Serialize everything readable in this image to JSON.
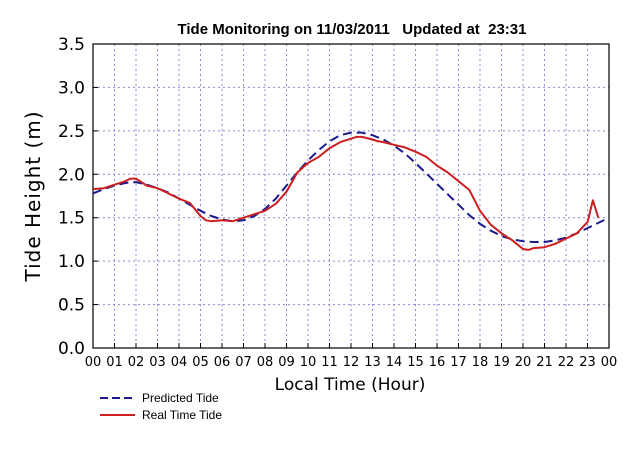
{
  "chart_data": {
    "type": "line",
    "title": "Tide Monitoring on 11/03/2011   Updated at  23:31",
    "xlabel": "Local Time (Hour)",
    "ylabel": "Tide Height (m)",
    "xlim": [
      0,
      24
    ],
    "ylim": [
      0,
      3.5
    ],
    "x_ticks": [
      "00",
      "01",
      "02",
      "03",
      "04",
      "05",
      "06",
      "07",
      "08",
      "09",
      "10",
      "11",
      "12",
      "13",
      "14",
      "15",
      "16",
      "17",
      "18",
      "19",
      "20",
      "21",
      "22",
      "23",
      "00"
    ],
    "y_ticks": [
      "0.0",
      "0.5",
      "1.0",
      "1.5",
      "2.0",
      "2.5",
      "3.0",
      "3.5"
    ],
    "grid": true,
    "legend_position": "bottom-left",
    "series": [
      {
        "name": "Predicted Tide",
        "style": "dashed",
        "color": "#1a1a8c",
        "x": [
          0,
          0.5,
          1,
          1.5,
          2,
          2.5,
          3,
          3.5,
          4,
          4.5,
          5,
          5.5,
          6,
          6.5,
          7,
          7.5,
          8,
          8.5,
          9,
          9.5,
          10,
          10.5,
          11,
          11.5,
          12,
          12.5,
          13,
          13.5,
          14,
          14.5,
          15,
          15.5,
          16,
          16.5,
          17,
          17.5,
          18,
          18.5,
          19,
          19.5,
          20,
          20.5,
          21,
          21.5,
          22,
          22.5,
          23,
          23.5,
          24
        ],
        "y": [
          1.78,
          1.83,
          1.87,
          1.9,
          1.91,
          1.88,
          1.84,
          1.79,
          1.72,
          1.65,
          1.58,
          1.52,
          1.48,
          1.46,
          1.47,
          1.52,
          1.6,
          1.72,
          1.87,
          2.02,
          2.16,
          2.28,
          2.38,
          2.45,
          2.48,
          2.48,
          2.45,
          2.4,
          2.33,
          2.24,
          2.13,
          2.01,
          1.89,
          1.77,
          1.65,
          1.53,
          1.43,
          1.35,
          1.29,
          1.25,
          1.23,
          1.22,
          1.22,
          1.24,
          1.27,
          1.32,
          1.38,
          1.44,
          1.5
        ]
      },
      {
        "name": "Real Time Tide",
        "style": "solid",
        "color": "#cc1f1f",
        "x": [
          0,
          0.5,
          1,
          1.5,
          1.75,
          2,
          2.5,
          3,
          3.5,
          4,
          4.5,
          5,
          5.25,
          5.5,
          6,
          6.5,
          7,
          7.5,
          8,
          8.5,
          9,
          9.5,
          10,
          10.5,
          11,
          11.5,
          12,
          12.25,
          12.5,
          13,
          13.25,
          13.5,
          14,
          14.5,
          15,
          15.5,
          16,
          16.5,
          17,
          17.5,
          18,
          18.5,
          19,
          19.5,
          20,
          20.25,
          20.5,
          21,
          21.5,
          22,
          22.5,
          23,
          23.25,
          23.5
        ],
        "y": [
          1.83,
          1.84,
          1.88,
          1.92,
          1.95,
          1.95,
          1.87,
          1.84,
          1.78,
          1.72,
          1.67,
          1.52,
          1.47,
          1.46,
          1.47,
          1.46,
          1.5,
          1.54,
          1.58,
          1.66,
          1.8,
          2.02,
          2.13,
          2.2,
          2.3,
          2.37,
          2.41,
          2.43,
          2.43,
          2.4,
          2.38,
          2.37,
          2.34,
          2.31,
          2.26,
          2.2,
          2.1,
          2.02,
          1.92,
          1.82,
          1.58,
          1.42,
          1.32,
          1.24,
          1.14,
          1.13,
          1.15,
          1.16,
          1.2,
          1.26,
          1.32,
          1.45,
          1.7,
          1.5
        ]
      }
    ]
  }
}
